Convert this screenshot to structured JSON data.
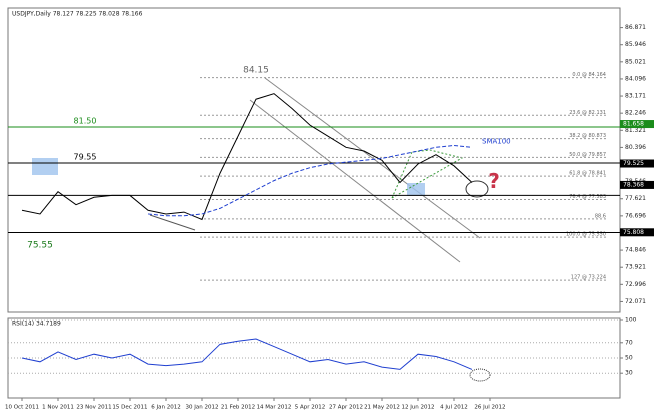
{
  "chart_data": [
    {
      "type": "line",
      "title": "USDJPY,Daily 78.127 78.225 78.028 78.166",
      "categories": [
        "10 Oct 2011",
        null,
        "1 Nov 2011",
        null,
        "23 Nov 2011",
        null,
        "15 Dec 2011",
        null,
        "6 Jan 2012",
        null,
        "30 Jan 2012",
        null,
        "21 Feb 2012",
        null,
        "14 Mar 2012",
        null,
        "5 Apr 2012",
        null,
        "27 Apr 2012",
        null,
        "21 May 2012",
        null,
        "12 Jun 2012",
        null,
        "4 Jul 2012",
        null,
        "26 Jul 2012"
      ],
      "series": [
        {
          "color": "#000000",
          "values": [
            77.0,
            76.8,
            78.0,
            77.3,
            77.7,
            77.8,
            77.8,
            77.0,
            76.8,
            76.9,
            76.5,
            79.0,
            81.0,
            83.0,
            83.3,
            82.5,
            81.6,
            81.0,
            80.4,
            80.2,
            79.7,
            78.5,
            79.5,
            80.0,
            79.4,
            78.5,
            null
          ]
        },
        {
          "name": "SMA100",
          "color": "#1f3fd0",
          "values": [
            null,
            null,
            null,
            null,
            null,
            null,
            null,
            76.8,
            76.7,
            76.7,
            76.8,
            77.1,
            77.6,
            78.1,
            78.6,
            79.0,
            79.3,
            79.5,
            79.6,
            79.7,
            79.8,
            80.0,
            80.2,
            80.4,
            80.5,
            80.4,
            null
          ]
        }
      ],
      "ylim": [
        71.5,
        87.93
      ],
      "yticks": [
        86.871,
        85.946,
        85.021,
        84.096,
        83.171,
        82.246,
        81.321,
        80.396,
        79.471,
        78.546,
        77.621,
        76.696,
        75.771,
        74.846,
        73.921,
        72.996,
        72.071
      ],
      "levels": [
        {
          "value": 81.5,
          "label": "81.50",
          "color": "#1a8c1a"
        },
        {
          "value": 79.55,
          "label": "79.55",
          "color": "#000000"
        },
        {
          "value": 77.8,
          "color": "#000000"
        },
        {
          "value": 75.8,
          "color": "#000000"
        }
      ],
      "price_markers": [
        {
          "value": 81.658,
          "color": "#1a8c1a"
        },
        {
          "value": 79.525,
          "color": "#000000"
        },
        {
          "value": 78.368,
          "color": "#000000"
        },
        {
          "value": 75.808,
          "color": "#000000"
        }
      ],
      "fib_levels": [
        {
          "value": 84.164,
          "label": "0.0 @ 84.164"
        },
        {
          "value": 82.131,
          "label": "23.6 @ 82.131"
        },
        {
          "value": 80.873,
          "label": "38.2 @ 80.873"
        },
        {
          "value": 79.857,
          "label": "50.0 @ 79.857"
        },
        {
          "value": 78.841,
          "label": "61.8 @ 78.841"
        },
        {
          "value": 77.583,
          "label": "76.4 @ 77.583"
        },
        {
          "value": 76.532,
          "label": "88.6"
        },
        {
          "value": 75.55,
          "label": "100.0 @ 75.550"
        },
        {
          "value": 73.224,
          "label": "127 @ 73.224"
        }
      ],
      "annotations": [
        {
          "value": 84.15,
          "label": "84.15",
          "at": 13
        },
        {
          "value": 75.55,
          "label": "75.55",
          "at": 1
        },
        {
          "value": 78.4,
          "label": "?",
          "at": 26
        }
      ]
    },
    {
      "type": "line",
      "title": "RSI(14) 34.7189",
      "series": [
        {
          "color": "#1f3fd0",
          "values": [
            50,
            45,
            58,
            48,
            55,
            50,
            55,
            42,
            40,
            42,
            45,
            68,
            72,
            75,
            65,
            55,
            45,
            48,
            42,
            45,
            38,
            35,
            55,
            52,
            45,
            35,
            null
          ]
        }
      ],
      "ylim": [
        0,
        100
      ],
      "yticks": [
        100,
        70,
        50,
        30
      ]
    }
  ]
}
